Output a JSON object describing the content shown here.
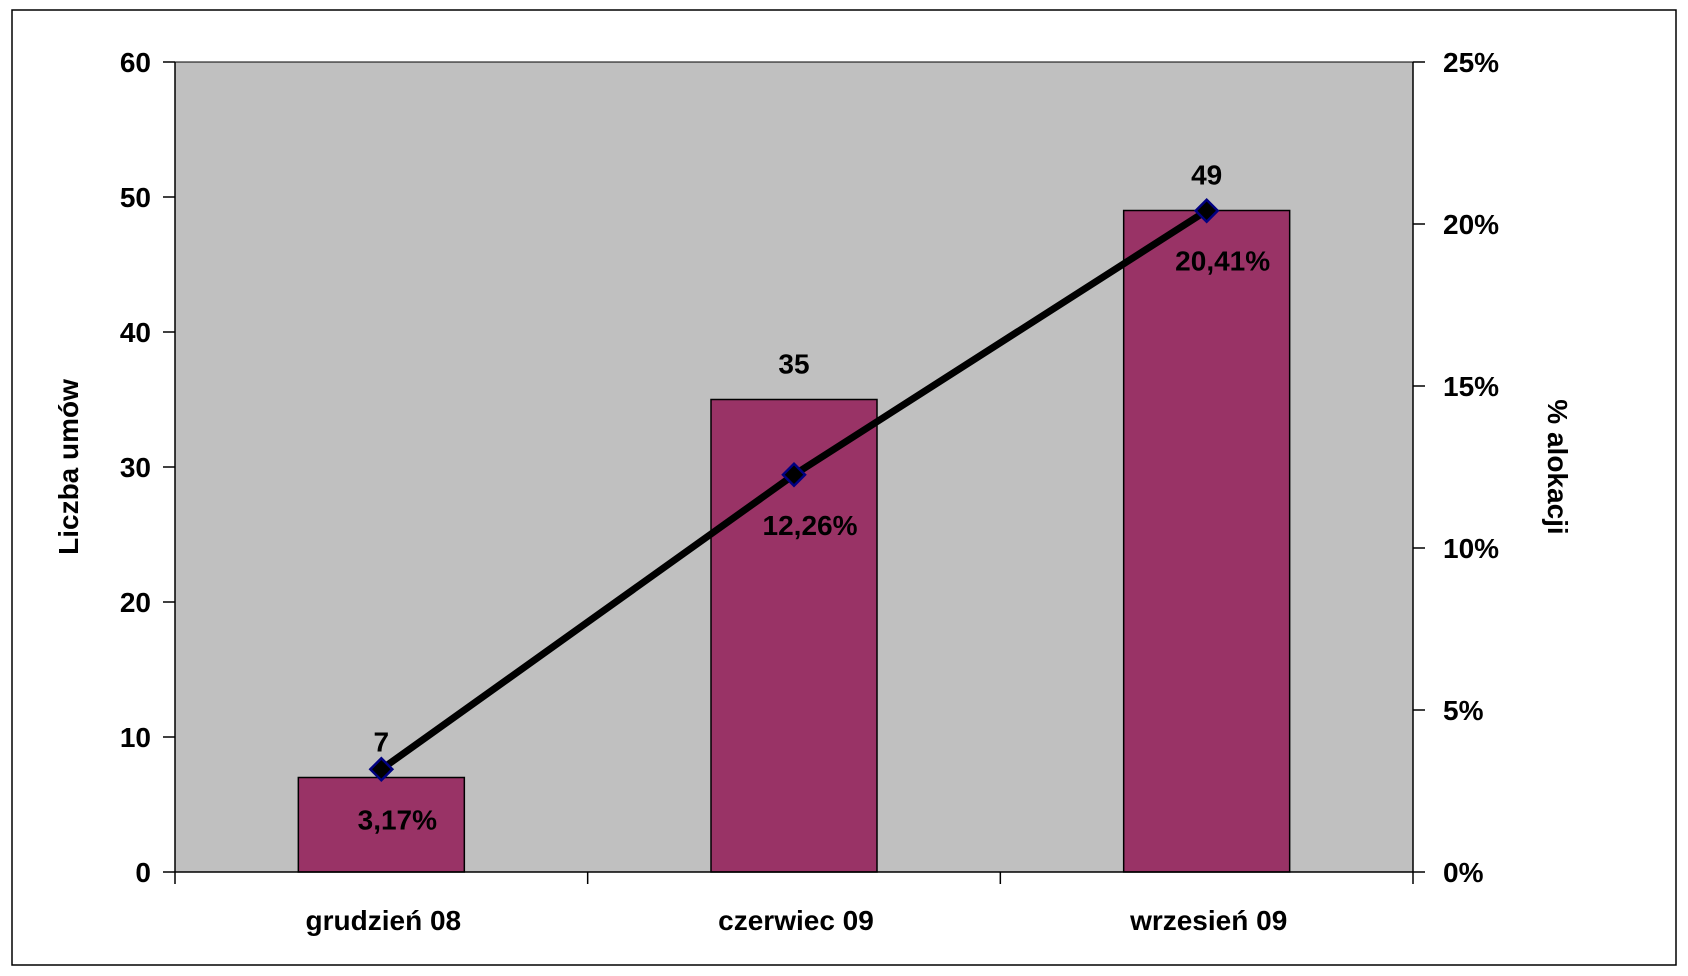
{
  "chart_data": {
    "type": "bar",
    "categories": [
      "grudzień 08",
      "czerwiec 09",
      "wrzesień 09"
    ],
    "series": [
      {
        "type": "bar",
        "axis": "left",
        "values": [
          7,
          35,
          49
        ],
        "labels": [
          "7",
          "35",
          "49"
        ],
        "color": "#993366"
      },
      {
        "type": "line",
        "axis": "right",
        "values": [
          3.17,
          12.26,
          20.41
        ],
        "labels": [
          "3,17%",
          "12,26%",
          "20,41%"
        ],
        "color": "#000000",
        "marker_color": "#000080"
      }
    ],
    "ylabel": "Liczba umów",
    "ylim": [
      0,
      60
    ],
    "yticks": [
      0,
      10,
      20,
      30,
      40,
      50,
      60
    ],
    "ytick_labels": [
      "0",
      "10",
      "20",
      "30",
      "40",
      "50",
      "60"
    ],
    "y2label": "% alokacji",
    "y2lim": [
      0,
      25
    ],
    "y2ticks": [
      0,
      5,
      10,
      15,
      20,
      25
    ],
    "y2tick_labels": [
      "0%",
      "5%",
      "10%",
      "15%",
      "20%",
      "25%"
    ],
    "grid": false,
    "plot_background": "#c0c0c0",
    "legend": "none"
  }
}
